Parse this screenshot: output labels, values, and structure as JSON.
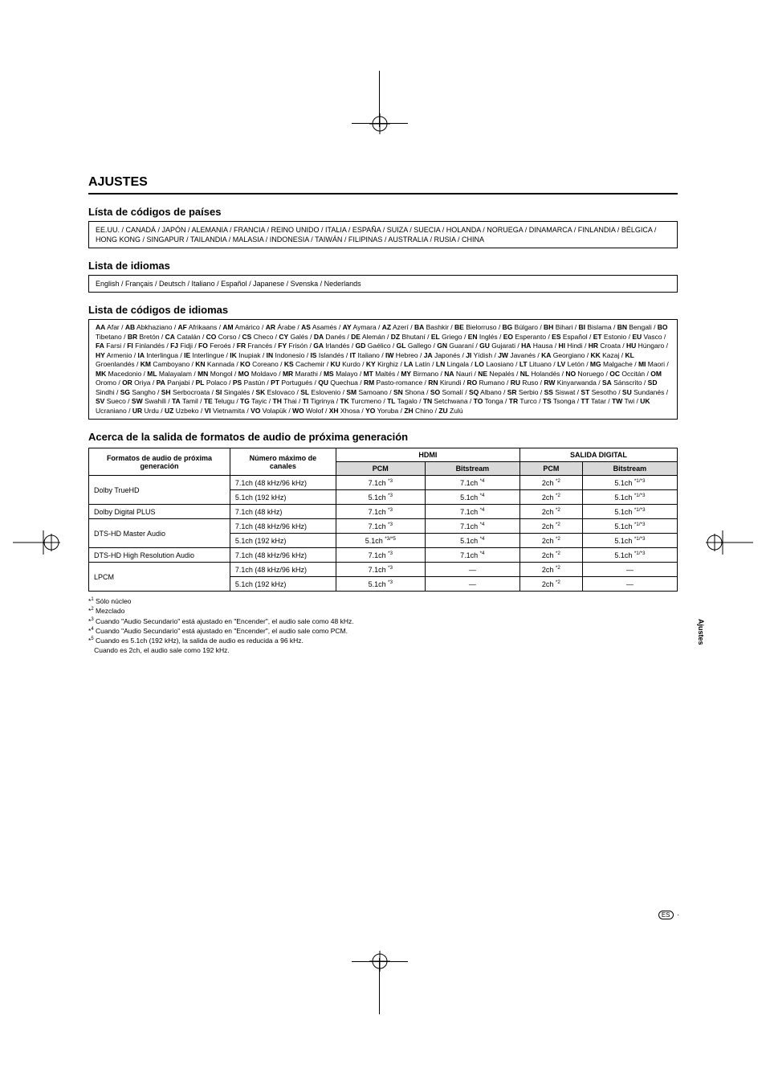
{
  "heading": "AJUSTES",
  "sub_countries": "Lísta de códigos de países",
  "countries_text": "EE.UU. / CANADÁ / JAPÓN / ALEMANIA / FRANCIA / REINO UNIDO / ITALIA / ESPAÑA / SUIZA / SUECIA / HOLANDA / NORUEGA / DINAMARCA / FINLANDIA / BÉLGICA / HONG KONG / SINGAPUR / TAILANDIA / MALASIA / INDONESIA / TAIWÁN / FILIPINAS / AUSTRALIA / RUSIA / CHINA",
  "sub_idiomas": "Lista de idiomas",
  "idiomas_text": "English / Français / Deutsch / Italiano / Español / Japanese / Svenska / Nederlands",
  "sub_codes": "Lista de códigos de idiomas",
  "lang_codes_html": "<b>AA</b> Afar / <b>AB</b> Abkhaziano / <b>AF</b> Afrikaans / <b>AM</b> Amárico / <b>AR</b> Árabe / <b>AS</b> Asamés / <b>AY</b> Aymara / <b>AZ</b> Azerí / <b>BA</b> Bashkir / <b>BE</b> Bielorruso / <b>BG</b> Búlgaro / <b>BH</b> Bihari / <b>BI</b> Bislama / <b>BN</b> Bengali / <b>BO</b> Tibetano / <b>BR</b> Bretón / <b>CA</b> Catalán / <b>CO</b> Corso / <b>CS</b> Checo / <b>CY</b> Galés / <b>DA</b> Danés / <b>DE</b> Alemán / <b>DZ</b> Bhutaní / <b>EL</b> Griego / <b>EN</b> Inglés / <b>EO</b> Esperanto / <b>ES</b> Español / <b>ET</b> Estonio / <b>EU</b> Vasco / <b>FA</b> Farsi / <b>FI</b> Finlandés / <b>FJ</b> Fidji / <b>FO</b> Feroés / <b>FR</b> Francés / <b>FY</b> Frisón / <b>GA</b> Irlandés / <b>GD</b> Gaélico / <b>GL</b> Gallego / <b>GN</b> Guaraní / <b>GU</b> Gujarati / <b>HA</b> Hausa / <b>HI</b> Hindi / <b>HR</b> Croata / <b>HU</b> Húngaro / <b>HY</b> Armenio / <b>IA</b> Interlingua / <b>IE</b> Interlingue / <b>IK</b> Inupiak / <b>IN</b> Indonesio / <b>IS</b> Islandés / <b>IT</b> Italiano / <b>IW</b> Hebreo / <b>JA</b> Japonés / <b>JI</b> Yídish / <b>JW</b> Javanés / <b>KA</b> Georgiano / <b>KK</b> Kazaj / <b>KL</b> Groenlandés / <b>KM</b> Camboyano / <b>KN</b> Kannada / <b>KO</b> Coreano / <b>KS</b> Cachemir / <b>KU</b> Kurdo / <b>KY</b> Kirghiz / <b>LA</b> Latín / <b>LN</b> Lingala / <b>LO</b> Laosiano / <b>LT</b> Lituano / <b>LV</b> Letón / <b>MG</b> Malgache / <b>MI</b> Maori / <b>MK</b> Macedonio / <b>ML</b> Malayalam / <b>MN</b> Mongol / <b>MO</b> Moldavo / <b>MR</b> Marathi / <b>MS</b> Malayo / <b>MT</b> Maltés / <b>MY</b> Birmano / <b>NA</b> Nauri / <b>NE</b> Nepalés / <b>NL</b> Holandés / <b>NO</b> Noruego / <b>OC</b> Occitán / <b>OM</b> Oromo / <b>OR</b> Oriya / <b>PA</b> Panjabi / <b>PL</b> Polaco / <b>PS</b> Pastún / <b>PT</b> Portugués / <b>QU</b> Quechua / <b>RM</b> Pasto-romance / <b>RN</b> Kirundi / <b>RO</b> Rumano / <b>RU</b> Ruso / <b>RW</b> Kinyarwanda / <b>SA</b> Sánscrito / <b>SD</b> Sindhi / <b>SG</b> Sangho / <b>SH</b> Serbocroata / <b>SI</b> Singalés / <b>SK</b> Eslovaco / <b>SL</b> Eslovenio / <b>SM</b> Samoano / <b>SN</b> Shona / <b>SO</b> Somalí / <b>SQ</b> Albano / <b>SR</b> Serbio / <b>SS</b> Siswat / <b>ST</b> Sesotho / <b>SU</b> Sundanés / <b>SV</b> Sueco / <b>SW</b> Swahili / <b>TA</b> Tamil / <b>TE</b> Telugu / <b>TG</b> Tayic / <b>TH</b> Thai / <b>TI</b> Tigrinya / <b>TK</b> Turcmeno / <b>TL</b> Tagalo / <b>TN</b> Setchwana / <b>TO</b> Tonga / <b>TR</b> Turco / <b>TS</b> Tsonga / <b>TT</b> Tatar / <b>TW</b> Twi / <b>UK</b> Ucraniano / <b>UR</b> Urdu / <b>UZ</b> Uzbeko / <b>VI</b> Vietnamita / <b>VO</b> Volapük / <b>WO</b> Wolof / <b>XH</b> Xhosa / <b>YO</b> Yoruba / <b>ZH</b> Chino / <b>ZU</b> Zulú",
  "sub_audio": "Acerca de la salida de formatos de audio de próxima generación",
  "table": {
    "head": {
      "col1": "Formatos de audio de próxima generación",
      "col2": "Número máximo de canales",
      "hdmi": "HDMI",
      "digital": "SALIDA DIGITAL",
      "pcm": "PCM",
      "bitstream": "Bitstream"
    },
    "rows": [
      {
        "fmt": "Dolby TrueHD",
        "max": "7.1ch (48 kHz/96 kHz)",
        "hdmi_pcm": "7.1ch *3",
        "hdmi_bit": "7.1ch *4",
        "dig_pcm": "2ch *2",
        "dig_bit": "5.1ch *1/*3"
      },
      {
        "fmt": "",
        "max": "5.1ch (192 kHz)",
        "hdmi_pcm": "5.1ch *3",
        "hdmi_bit": "5.1ch *4",
        "dig_pcm": "2ch *2",
        "dig_bit": "5.1ch *1/*3"
      },
      {
        "fmt": "Dolby Digital PLUS",
        "max": "7.1ch (48 kHz)",
        "hdmi_pcm": "7.1ch *3",
        "hdmi_bit": "7.1ch *4",
        "dig_pcm": "2ch *2",
        "dig_bit": "5.1ch *1/*3"
      },
      {
        "fmt": "DTS-HD Master Audio",
        "max": "7.1ch (48 kHz/96 kHz)",
        "hdmi_pcm": "7.1ch *3",
        "hdmi_bit": "7.1ch *4",
        "dig_pcm": "2ch *2",
        "dig_bit": "5.1ch *1/*3"
      },
      {
        "fmt": "",
        "max": "5.1ch (192 kHz)",
        "hdmi_pcm": "5.1ch *3/*5",
        "hdmi_bit": "5.1ch *4",
        "dig_pcm": "2ch *2",
        "dig_bit": "5.1ch *1/*3"
      },
      {
        "fmt": "DTS-HD High Resolution Audio",
        "max": "7.1ch (48 kHz/96 kHz)",
        "hdmi_pcm": "7.1ch *3",
        "hdmi_bit": "7.1ch *4",
        "dig_pcm": "2ch *2",
        "dig_bit": "5.1ch *1/*3"
      },
      {
        "fmt": "LPCM",
        "max": "7.1ch (48 kHz/96 kHz)",
        "hdmi_pcm": "7.1ch *3",
        "hdmi_bit": "—",
        "dig_pcm": "2ch *2",
        "dig_bit": "—"
      },
      {
        "fmt": "",
        "max": "5.1ch (192 kHz)",
        "hdmi_pcm": "5.1ch *3",
        "hdmi_bit": "—",
        "dig_pcm": "2ch *2",
        "dig_bit": "—"
      }
    ]
  },
  "rowspans": [
    2,
    0,
    1,
    2,
    0,
    1,
    2,
    0
  ],
  "footnotes": [
    "*1 Sólo núcleo",
    "*2 Mezclado",
    "*3 Cuando \"Audio Secundario\" está ajustado en \"Encender\", el audio sale como 48 kHz.",
    "*4 Cuando \"Audio Secundario\" está ajustado en \"Encender\", el audio sale como PCM.",
    "*5 Cuando es 5.1ch (192 kHz), la salida de audio es reducida a 96 kHz.",
    "   Cuando es 2ch, el audio sale como 192 kHz."
  ],
  "side_tab": "Ajustes",
  "page_number_lang": "ES",
  "colors": {
    "grey": "#d9d9d9",
    "text": "#000000",
    "bg": "#ffffff"
  }
}
